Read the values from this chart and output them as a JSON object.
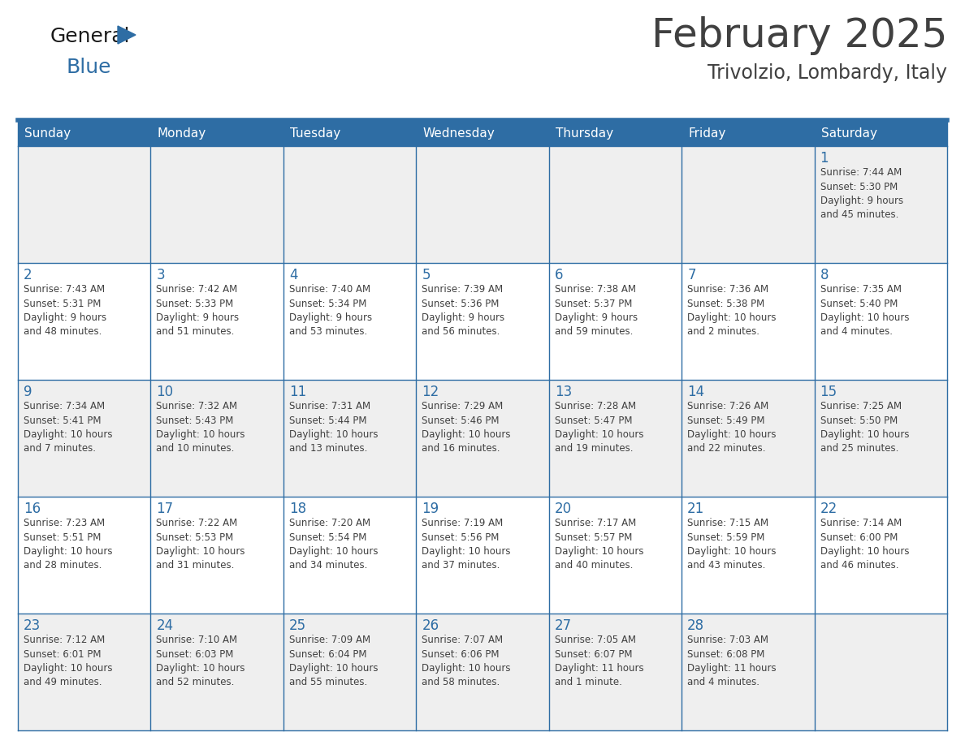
{
  "title": "February 2025",
  "subtitle": "Trivolzio, Lombardy, Italy",
  "days_of_week": [
    "Sunday",
    "Monday",
    "Tuesday",
    "Wednesday",
    "Thursday",
    "Friday",
    "Saturday"
  ],
  "header_bg": "#2E6DA4",
  "header_text": "#FFFFFF",
  "cell_bg_odd": "#EFEFEF",
  "cell_bg_even": "#FFFFFF",
  "border_color": "#2E6DA4",
  "text_color": "#404040",
  "day_num_color": "#2E6DA4",
  "bg_color": "#FFFFFF",
  "logo_general_color": "#1a1a1a",
  "logo_blue_color": "#2E6DA4",
  "logo_triangle_color": "#2E6DA4",
  "weeks": [
    [
      {
        "day": null,
        "info": null
      },
      {
        "day": null,
        "info": null
      },
      {
        "day": null,
        "info": null
      },
      {
        "day": null,
        "info": null
      },
      {
        "day": null,
        "info": null
      },
      {
        "day": null,
        "info": null
      },
      {
        "day": 1,
        "info": "Sunrise: 7:44 AM\nSunset: 5:30 PM\nDaylight: 9 hours\nand 45 minutes."
      }
    ],
    [
      {
        "day": 2,
        "info": "Sunrise: 7:43 AM\nSunset: 5:31 PM\nDaylight: 9 hours\nand 48 minutes."
      },
      {
        "day": 3,
        "info": "Sunrise: 7:42 AM\nSunset: 5:33 PM\nDaylight: 9 hours\nand 51 minutes."
      },
      {
        "day": 4,
        "info": "Sunrise: 7:40 AM\nSunset: 5:34 PM\nDaylight: 9 hours\nand 53 minutes."
      },
      {
        "day": 5,
        "info": "Sunrise: 7:39 AM\nSunset: 5:36 PM\nDaylight: 9 hours\nand 56 minutes."
      },
      {
        "day": 6,
        "info": "Sunrise: 7:38 AM\nSunset: 5:37 PM\nDaylight: 9 hours\nand 59 minutes."
      },
      {
        "day": 7,
        "info": "Sunrise: 7:36 AM\nSunset: 5:38 PM\nDaylight: 10 hours\nand 2 minutes."
      },
      {
        "day": 8,
        "info": "Sunrise: 7:35 AM\nSunset: 5:40 PM\nDaylight: 10 hours\nand 4 minutes."
      }
    ],
    [
      {
        "day": 9,
        "info": "Sunrise: 7:34 AM\nSunset: 5:41 PM\nDaylight: 10 hours\nand 7 minutes."
      },
      {
        "day": 10,
        "info": "Sunrise: 7:32 AM\nSunset: 5:43 PM\nDaylight: 10 hours\nand 10 minutes."
      },
      {
        "day": 11,
        "info": "Sunrise: 7:31 AM\nSunset: 5:44 PM\nDaylight: 10 hours\nand 13 minutes."
      },
      {
        "day": 12,
        "info": "Sunrise: 7:29 AM\nSunset: 5:46 PM\nDaylight: 10 hours\nand 16 minutes."
      },
      {
        "day": 13,
        "info": "Sunrise: 7:28 AM\nSunset: 5:47 PM\nDaylight: 10 hours\nand 19 minutes."
      },
      {
        "day": 14,
        "info": "Sunrise: 7:26 AM\nSunset: 5:49 PM\nDaylight: 10 hours\nand 22 minutes."
      },
      {
        "day": 15,
        "info": "Sunrise: 7:25 AM\nSunset: 5:50 PM\nDaylight: 10 hours\nand 25 minutes."
      }
    ],
    [
      {
        "day": 16,
        "info": "Sunrise: 7:23 AM\nSunset: 5:51 PM\nDaylight: 10 hours\nand 28 minutes."
      },
      {
        "day": 17,
        "info": "Sunrise: 7:22 AM\nSunset: 5:53 PM\nDaylight: 10 hours\nand 31 minutes."
      },
      {
        "day": 18,
        "info": "Sunrise: 7:20 AM\nSunset: 5:54 PM\nDaylight: 10 hours\nand 34 minutes."
      },
      {
        "day": 19,
        "info": "Sunrise: 7:19 AM\nSunset: 5:56 PM\nDaylight: 10 hours\nand 37 minutes."
      },
      {
        "day": 20,
        "info": "Sunrise: 7:17 AM\nSunset: 5:57 PM\nDaylight: 10 hours\nand 40 minutes."
      },
      {
        "day": 21,
        "info": "Sunrise: 7:15 AM\nSunset: 5:59 PM\nDaylight: 10 hours\nand 43 minutes."
      },
      {
        "day": 22,
        "info": "Sunrise: 7:14 AM\nSunset: 6:00 PM\nDaylight: 10 hours\nand 46 minutes."
      }
    ],
    [
      {
        "day": 23,
        "info": "Sunrise: 7:12 AM\nSunset: 6:01 PM\nDaylight: 10 hours\nand 49 minutes."
      },
      {
        "day": 24,
        "info": "Sunrise: 7:10 AM\nSunset: 6:03 PM\nDaylight: 10 hours\nand 52 minutes."
      },
      {
        "day": 25,
        "info": "Sunrise: 7:09 AM\nSunset: 6:04 PM\nDaylight: 10 hours\nand 55 minutes."
      },
      {
        "day": 26,
        "info": "Sunrise: 7:07 AM\nSunset: 6:06 PM\nDaylight: 10 hours\nand 58 minutes."
      },
      {
        "day": 27,
        "info": "Sunrise: 7:05 AM\nSunset: 6:07 PM\nDaylight: 11 hours\nand 1 minute."
      },
      {
        "day": 28,
        "info": "Sunrise: 7:03 AM\nSunset: 6:08 PM\nDaylight: 11 hours\nand 4 minutes."
      },
      {
        "day": null,
        "info": null
      }
    ]
  ]
}
